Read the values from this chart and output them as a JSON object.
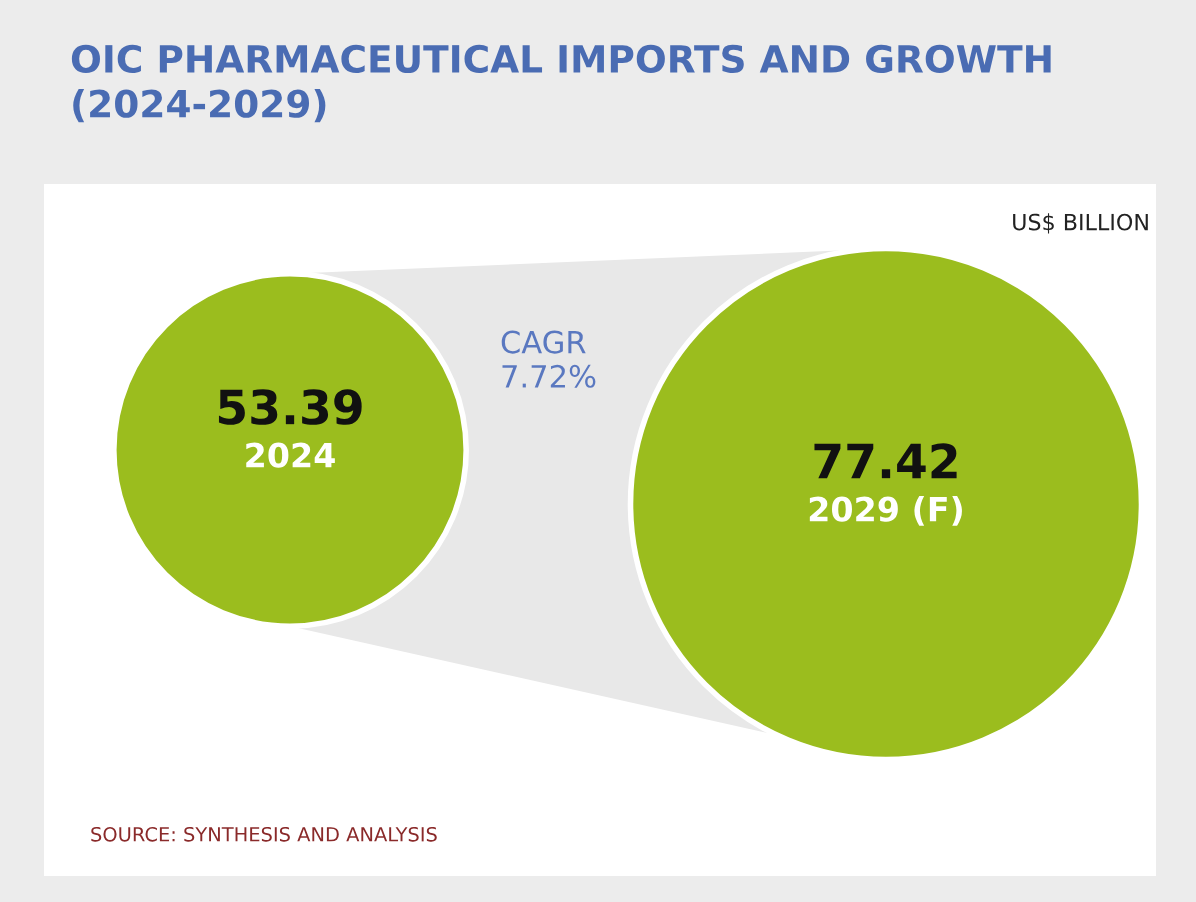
{
  "chart_data": {
    "type": "other",
    "title": "OIC PHARMACEUTICAL IMPORTS AND GROWTH\n(2024-2029)",
    "subtitle": "US$ BILLION",
    "categories": [
      "2024",
      "2029 (F)"
    ],
    "values": [
      53.39,
      77.42
    ],
    "data_labels": true,
    "color": "#9bbd1e",
    "annotations": [
      "CAGR\n7.72%",
      "SOURCE: SYNTHESIS AND ANALYSIS"
    ]
  }
}
